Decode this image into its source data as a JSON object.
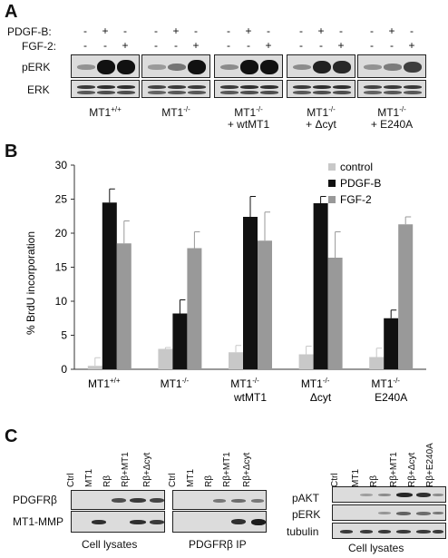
{
  "panelA": {
    "letter": "A",
    "row_labels": [
      "PDGF-B:",
      "FGF-2:"
    ],
    "pdgf_signs": [
      "-",
      "+",
      "-",
      "-",
      "+",
      "-",
      "-",
      "+",
      "-",
      "-",
      "+",
      "-",
      "-",
      "+",
      "-"
    ],
    "fgf_signs": [
      "-",
      "-",
      "+",
      "-",
      "-",
      "+",
      "-",
      "-",
      "+",
      "-",
      "-",
      "+",
      "-",
      "-",
      "+"
    ],
    "blot_labels": [
      "pERK",
      "ERK"
    ],
    "groups": [
      {
        "l1": "MT1",
        "sup": "+/+",
        "l2": ""
      },
      {
        "l1": "MT1",
        "sup": "-/-",
        "l2": ""
      },
      {
        "l1": "MT1",
        "sup": "-/-",
        "l2": "+ wtMT1"
      },
      {
        "l1": "MT1",
        "sup": "-/-",
        "l2": "+ Δcyt"
      },
      {
        "l1": "MT1",
        "sup": "-/-",
        "l2": "+ E240A"
      }
    ]
  },
  "panelB": {
    "letter": "B"
  },
  "chart_data": {
    "type": "bar",
    "ylabel": "% BrdU incorporation",
    "ylim": [
      0,
      30
    ],
    "yticks": [
      0,
      5,
      10,
      15,
      20,
      25,
      30
    ],
    "groups": [
      {
        "l1": "MT1",
        "sup": "+/+",
        "l2": ""
      },
      {
        "l1": "MT1",
        "sup": "-/-",
        "l2": ""
      },
      {
        "l1": "MT1",
        "sup": "-/-",
        "l2": "wtMT1"
      },
      {
        "l1": "MT1",
        "sup": "-/-",
        "l2": "Δcyt"
      },
      {
        "l1": "MT1",
        "sup": "-/-",
        "l2": "E240A"
      }
    ],
    "series": [
      {
        "name": "control",
        "color": "#c8c8c8",
        "values": [
          0.5,
          3.0,
          2.5,
          2.2,
          1.8
        ],
        "errors": [
          1.2,
          0.2,
          1.0,
          1.2,
          1.3
        ]
      },
      {
        "name": "PDGF-B",
        "color": "#111111",
        "values": [
          24.5,
          8.2,
          22.4,
          24.4,
          7.5
        ],
        "errors": [
          2.0,
          2.0,
          3.0,
          1.0,
          1.2
        ]
      },
      {
        "name": "FGF-2",
        "color": "#999999",
        "values": [
          18.5,
          17.8,
          18.9,
          16.4,
          21.3
        ],
        "errors": [
          3.3,
          2.4,
          4.2,
          3.8,
          1.1
        ]
      }
    ],
    "legend": "top-right"
  },
  "panelC": {
    "letter": "C",
    "lanes_left": [
      "Ctrl",
      "MT1",
      "Rβ",
      "Rβ+MT1",
      "Rβ+Δcyt"
    ],
    "lanes_right": [
      "Ctrl",
      "MT1",
      "Rβ",
      "Rβ+MT1",
      "Rβ+Δcyt",
      "Rβ+E240A"
    ],
    "left_labels": [
      "PDGFRβ",
      "MT1-MMP"
    ],
    "right_labels": [
      "pAKT",
      "pERK",
      "tubulin"
    ],
    "captions": [
      "Cell lysates",
      "PDGFRβ  IP",
      "Cell lysates"
    ]
  }
}
